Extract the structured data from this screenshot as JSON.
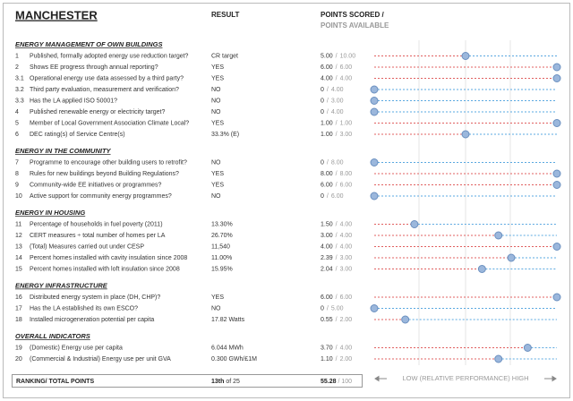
{
  "header": {
    "title": "MANCHESTER",
    "result": "RESULT",
    "points_scored": "POINTS SCORED /",
    "points_available": "POINTS AVAILABLE"
  },
  "separator": "/",
  "sections": [
    {
      "title": "ENERGY MANAGEMENT OF OWN BUILDINGS",
      "rows": [
        {
          "num": "1",
          "question": "Published, formally adopted energy use reduction target?",
          "result": "CR target",
          "score": "5.00",
          "available": "10.00",
          "relative": 50
        },
        {
          "num": "2",
          "question": "Shows EE progress through annual reporting?",
          "result": "YES",
          "score": "6.00",
          "available": "6.00",
          "relative": 100
        },
        {
          "num": "3.1",
          "question": "Operational energy use data assessed by a third party?",
          "result": "YES",
          "score": "4.00",
          "available": "4.00",
          "relative": 100
        },
        {
          "num": "3.2",
          "question": "Third party evaluation, measurement and verification?",
          "result": "NO",
          "score": "0",
          "available": "4.00",
          "relative": 0
        },
        {
          "num": "3.3",
          "question": "Has the LA applied ISO 50001?",
          "result": "NO",
          "score": "0",
          "available": "3.00",
          "relative": 0
        },
        {
          "num": "4",
          "question": "Published renewable energy or electricity target?",
          "result": "NO",
          "score": "0",
          "available": "4.00",
          "relative": 0
        },
        {
          "num": "5",
          "question": "Member of Local Government Association Climate Local?",
          "result": "YES",
          "score": "1.00",
          "available": "1.00",
          "relative": 100
        },
        {
          "num": "6",
          "question": "DEC rating(s) of Service Centre(s)",
          "result": "33.3% (E)",
          "score": "1.00",
          "available": "3.00",
          "relative": 50
        }
      ]
    },
    {
      "title": "ENERGY IN THE COMMUNITY",
      "rows": [
        {
          "num": "7",
          "question": "Programme to encourage other building users to retrofit?",
          "result": "NO",
          "score": "0",
          "available": "8.00",
          "relative": 0
        },
        {
          "num": "8",
          "question": "Rules for new buildings beyond Building Regulations?",
          "result": "YES",
          "score": "8.00",
          "available": "8.00",
          "relative": 100
        },
        {
          "num": "9",
          "question": "Community-wide EE initiatives or programmes?",
          "result": "YES",
          "score": "6.00",
          "available": "6.00",
          "relative": 100
        },
        {
          "num": "10",
          "question": "Active support for community energy programmes?",
          "result": "NO",
          "score": "0",
          "available": "6.00",
          "relative": 0
        }
      ]
    },
    {
      "title": "ENERGY IN HOUSING",
      "rows": [
        {
          "num": "11",
          "question": "Percentage of households in fuel poverty (2011)",
          "result": "13.30%",
          "score": "1.50",
          "available": "4.00",
          "relative": 22
        },
        {
          "num": "12",
          "question": "CERT measures ÷ total number of homes per LA",
          "result": "26.70%",
          "score": "3.00",
          "available": "4.00",
          "relative": 68
        },
        {
          "num": "13",
          "question": "(Total) Measures carried out under CESP",
          "result": "11,540",
          "score": "4.00",
          "available": "4.00",
          "relative": 100
        },
        {
          "num": "14",
          "question": "Percent homes installed with cavity insulation since 2008",
          "result": "11.00%",
          "score": "2.39",
          "available": "3.00",
          "relative": 75
        },
        {
          "num": "15",
          "question": "Percent homes installed with loft insulation since 2008",
          "result": "15.95%",
          "score": "2.04",
          "available": "3.00",
          "relative": 59
        }
      ]
    },
    {
      "title": "ENERGY INFRASTRUCTURE",
      "rows": [
        {
          "num": "16",
          "question": "Distributed energy system in place (DH, CHP)?",
          "result": "YES",
          "score": "6.00",
          "available": "6.00",
          "relative": 100
        },
        {
          "num": "17",
          "question": "Has the LA established its own ESCO?",
          "result": "NO",
          "score": "0",
          "available": "5.00",
          "relative": 0
        },
        {
          "num": "18",
          "question": "Installed microgeneration potential per capita",
          "result": "17.82 Watts",
          "score": "0.55",
          "available": "2.00",
          "relative": 17
        }
      ]
    },
    {
      "title": "OVERALL INDICATORS",
      "rows": [
        {
          "num": "19",
          "question": "(Domestic) Energy use per capita",
          "result": "6.044 MWh",
          "score": "3.70",
          "available": "4.00",
          "relative": 84
        },
        {
          "num": "20",
          "question": "(Commercial & Industrial) Energy use per unit GVA",
          "result": "0.300 GWh/£1M",
          "score": "1.10",
          "available": "2.00",
          "relative": 68
        }
      ]
    }
  ],
  "footer": {
    "label": "RANKING/ TOTAL POINTS",
    "rank": "13th",
    "rank_of": "of 25",
    "total": "55.28",
    "total_max": "/ 100",
    "scale": "LOW (RELATIVE PERFORMANCE) HIGH"
  }
}
